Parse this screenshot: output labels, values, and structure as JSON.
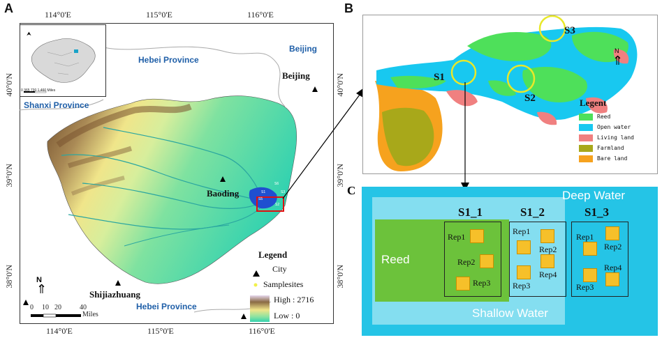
{
  "panels": {
    "a": "A",
    "b": "B",
    "c": "C"
  },
  "map_a": {
    "top_ticks": [
      "114°0'E",
      "115°0'E",
      "116°0'E"
    ],
    "bottom_ticks": [
      "114°0'E",
      "115°0'E",
      "116°0'E"
    ],
    "left_ticks": [
      "40°0'N",
      "39°0'N",
      "38°0'N"
    ],
    "right_ticks": [
      "40°0'N",
      "39°0'N",
      "38°0'N"
    ],
    "provinces": {
      "hebei_top": "Hebei Province",
      "beijing_prov": "Beijing",
      "shanxi": "Shanxi Province",
      "hebei_bottom": "Hebei Province"
    },
    "cities": {
      "beijing": "Beijing",
      "baoding": "Baoding",
      "shijiazhuang": "Shijiazhuang"
    },
    "inset_scale": "0  365 730      1,460 Miles",
    "north": "N",
    "scalebar": {
      "labels": [
        "0",
        "10",
        "20",
        "40"
      ],
      "unit": "Miles"
    },
    "legend": {
      "title": "Legend",
      "city": "City",
      "samplesites": "Samplesites",
      "high": "High : 2716",
      "low": "Low : 0"
    },
    "site_labels": [
      "S6",
      "S1",
      "S2",
      "S5",
      "S3"
    ]
  },
  "map_b": {
    "sites": [
      "S1",
      "S2",
      "S3"
    ],
    "north": "N",
    "legend": {
      "title": "Legent",
      "items": [
        {
          "label": "Reed",
          "color": "#4ee05a"
        },
        {
          "label": "Open water",
          "color": "#18c8f0"
        },
        {
          "label": "Living land",
          "color": "#f08080"
        },
        {
          "label": "Farmland",
          "color": "#a8a81a"
        },
        {
          "label": "Bare land",
          "color": "#f6a21e"
        }
      ]
    }
  },
  "diagram_c": {
    "deep": "Deep Water",
    "shallow": "Shallow Water",
    "reed": "Reed",
    "groups": [
      {
        "title": "S1_1",
        "reps": [
          "Rep1",
          "Rep2",
          "Rep3"
        ]
      },
      {
        "title": "S1_2",
        "reps": [
          "Rep1",
          "Rep2",
          "Rep4",
          "Rep3"
        ]
      },
      {
        "title": "S1_3",
        "reps": [
          "Rep1",
          "Rep2",
          "Rep4",
          "Rep3"
        ]
      }
    ]
  }
}
